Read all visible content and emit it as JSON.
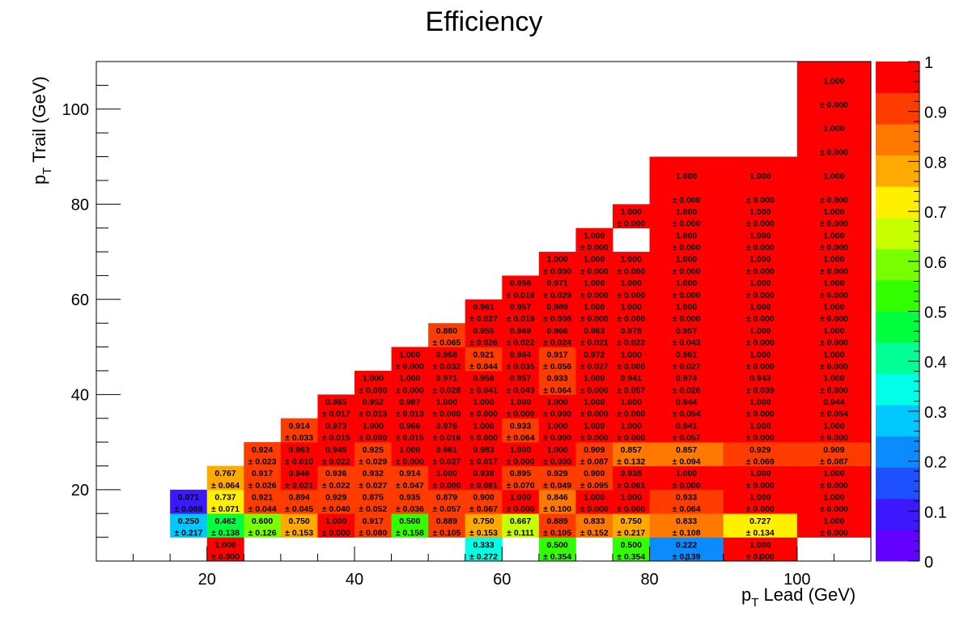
{
  "chart_data": {
    "type": "heatmap",
    "title": "Efficiency",
    "xlabel": {
      "base": "p",
      "sub": "T",
      "rest": " Lead (GeV)"
    },
    "ylabel": {
      "base": "p",
      "sub": "T",
      "rest": " Trail (GeV)"
    },
    "x_edges": [
      5,
      10,
      15,
      20,
      25,
      30,
      35,
      40,
      45,
      50,
      55,
      60,
      65,
      70,
      75,
      80,
      90,
      100,
      110
    ],
    "y_edges": [
      5,
      10,
      12.5,
      15,
      17.5,
      20,
      22.5,
      25,
      27.5,
      30,
      32.5,
      35,
      37.5,
      40,
      42.5,
      45,
      47.5,
      50,
      52.5,
      55,
      57.5,
      60,
      62.5,
      65,
      67.5,
      70,
      72.5,
      75,
      80,
      90,
      100,
      110
    ],
    "xlim": [
      5,
      110
    ],
    "ylim": [
      5,
      110
    ],
    "zlim": [
      0,
      1
    ],
    "x_ticks": [
      20,
      40,
      60,
      80,
      100
    ],
    "y_ticks": [
      20,
      40,
      60,
      80,
      100
    ],
    "z_ticks": [
      "0",
      "0.1",
      "0.2",
      "0.3",
      "0.4",
      "0.5",
      "0.6",
      "0.7",
      "0.8",
      "0.9",
      "1"
    ],
    "palette": [
      "#6400ff",
      "#3c18ff",
      "#1e50ff",
      "#0a8cff",
      "#00c8ff",
      "#00ffe6",
      "#00ff96",
      "#00ff3c",
      "#32ff00",
      "#78ff00",
      "#c8ff00",
      "#fff000",
      "#ffaa00",
      "#ff7800",
      "#ff3c00",
      "#ff0000"
    ],
    "rows": [
      [
        null,
        null,
        null,
        [
          "1.000",
          "0.000"
        ],
        null,
        null,
        null,
        null,
        null,
        null,
        [
          "0.333",
          "0.272"
        ],
        null,
        [
          "0.500",
          "0.354"
        ],
        null,
        [
          "0.500",
          "0.354"
        ],
        [
          "0.222",
          "0.139"
        ],
        [
          "1.000",
          "0.000"
        ],
        null
      ],
      [
        null,
        null,
        [
          "0.250",
          "0.217"
        ],
        [
          "0.462",
          "0.138"
        ],
        [
          "0.600",
          "0.126"
        ],
        [
          "0.750",
          "0.153"
        ],
        [
          "1.000",
          "0.000"
        ],
        [
          "0.917",
          "0.080"
        ],
        [
          "0.500",
          "0.158"
        ],
        [
          "0.889",
          "0.105"
        ],
        [
          "0.750",
          "0.153"
        ],
        [
          "0.667",
          "0.111"
        ],
        [
          "0.889",
          "0.105"
        ],
        [
          "0.833",
          "0.152"
        ],
        [
          "0.750",
          "0.217"
        ],
        [
          "0.833",
          "0.108"
        ],
        [
          "0.727",
          "0.134"
        ],
        [
          "1.000",
          "0.000"
        ]
      ],
      [
        null,
        null,
        [
          "0.071",
          "0.069"
        ],
        [
          "0.737",
          "0.071"
        ],
        [
          "0.921",
          "0.044"
        ],
        [
          "0.894",
          "0.045"
        ],
        [
          "0.929",
          "0.040"
        ],
        [
          "0.875",
          "0.052"
        ],
        [
          "0.935",
          "0.036"
        ],
        [
          "0.879",
          "0.057"
        ],
        [
          "0.900",
          "0.067"
        ],
        [
          "1.000",
          "0.000"
        ],
        [
          "0.846",
          "0.100"
        ],
        [
          "1.000",
          "0.000"
        ],
        [
          "1.000",
          "0.000"
        ],
        [
          "0.933",
          "0.064"
        ],
        [
          "1.000",
          "0.000"
        ],
        [
          "1.000",
          "0.000"
        ]
      ],
      [
        null,
        null,
        null,
        [
          "0.767",
          "0.064"
        ],
        [
          "0.917",
          "0.026"
        ],
        [
          "0.946",
          "0.021"
        ],
        [
          "0.936",
          "0.022"
        ],
        [
          "0.932",
          "0.027"
        ],
        [
          "0.914",
          "0.047"
        ],
        [
          "1.000",
          "0.000"
        ],
        [
          "0.938",
          "0.061"
        ],
        [
          "0.895",
          "0.070"
        ],
        [
          "0.929",
          "0.049"
        ],
        [
          "0.900",
          "0.095"
        ],
        [
          "0.938",
          "0.061"
        ],
        [
          "1.000",
          "0.000"
        ],
        [
          "1.000",
          "0.000"
        ],
        [
          "1.000",
          "0.000"
        ]
      ],
      [
        null,
        null,
        null,
        null,
        [
          "0.924",
          "0.023"
        ],
        [
          "0.963",
          "0.010"
        ],
        [
          "0.945",
          "0.022"
        ],
        [
          "0.925",
          "0.029"
        ],
        [
          "1.000",
          "0.000"
        ],
        [
          "0.961",
          "0.027"
        ],
        [
          "0.983",
          "0.017"
        ],
        [
          "1.000",
          "0.000"
        ],
        [
          "1.000",
          "0.000"
        ],
        [
          "0.909",
          "0.087"
        ],
        [
          "0.857",
          "0.132"
        ],
        [
          "0.857",
          "0.094"
        ],
        [
          "0.929",
          "0.069"
        ],
        [
          "0.909",
          "0.087"
        ]
      ],
      [
        null,
        null,
        null,
        null,
        null,
        [
          "0.914",
          "0.033"
        ],
        [
          "0.973",
          "0.015"
        ],
        [
          "1.000",
          "0.000"
        ],
        [
          "0.966",
          "0.015"
        ],
        [
          "0.976",
          "0.016"
        ],
        [
          "1.000",
          "0.000"
        ],
        [
          "0.933",
          "0.064"
        ],
        [
          "1.000",
          "0.000"
        ],
        [
          "1.000",
          "0.000"
        ],
        [
          "1.000",
          "0.000"
        ],
        [
          "0.941",
          "0.057"
        ],
        [
          "1.000",
          "0.000"
        ],
        [
          "1.000",
          "0.000"
        ]
      ],
      [
        null,
        null,
        null,
        null,
        null,
        null,
        [
          "0.965",
          "0.017"
        ],
        [
          "0.952",
          "0.013"
        ],
        [
          "0.987",
          "0.013"
        ],
        [
          "1.000",
          "0.000"
        ],
        [
          "1.000",
          "0.000"
        ],
        [
          "1.000",
          "0.000"
        ],
        [
          "1.000",
          "0.000"
        ],
        [
          "1.000",
          "0.000"
        ],
        [
          "1.000",
          "0.000"
        ],
        [
          "0.944",
          "0.054"
        ],
        [
          "1.000",
          "0.000"
        ],
        [
          "0.944",
          "0.054"
        ]
      ],
      [
        null,
        null,
        null,
        null,
        null,
        null,
        null,
        [
          "1.000",
          "0.000"
        ],
        [
          "1.000",
          "0.000"
        ],
        [
          "0.971",
          "0.028"
        ],
        [
          "0.958",
          "0.041"
        ],
        [
          "0.957",
          "0.043"
        ],
        [
          "0.933",
          "0.064"
        ],
        [
          "1.000",
          "0.000"
        ],
        [
          "0.941",
          "0.057"
        ],
        [
          "0.974",
          "0.026"
        ],
        [
          "0.943",
          "0.039"
        ],
        [
          "1.000",
          "0.000"
        ]
      ],
      [
        null,
        null,
        null,
        null,
        null,
        null,
        null,
        null,
        [
          "1.000",
          "0.000"
        ],
        [
          "0.968",
          "0.032"
        ],
        [
          "0.921",
          "0.044"
        ],
        [
          "0.964",
          "0.035"
        ],
        [
          "0.917",
          "0.056"
        ],
        [
          "0.972",
          "0.027"
        ],
        [
          "1.000",
          "0.000"
        ],
        [
          "0.961",
          "0.027"
        ],
        [
          "1.000",
          "0.000"
        ],
        [
          "1.000",
          "0.000"
        ]
      ],
      [
        null,
        null,
        null,
        null,
        null,
        null,
        null,
        null,
        null,
        [
          "0.880",
          "0.065"
        ],
        [
          "0.955",
          "0.026"
        ],
        [
          "0.969",
          "0.022"
        ],
        [
          "0.966",
          "0.024"
        ],
        [
          "0.963",
          "0.021"
        ],
        [
          "0.978",
          "0.022"
        ],
        [
          "0.957",
          "0.043"
        ],
        [
          "1.000",
          "0.000"
        ],
        [
          "1.000",
          "0.000"
        ]
      ],
      [
        null,
        null,
        null,
        null,
        null,
        null,
        null,
        null,
        null,
        null,
        [
          "0.961",
          "0.027"
        ],
        [
          "0.957",
          "0.019"
        ],
        [
          "0.989",
          "0.008"
        ],
        [
          "1.000",
          "0.000"
        ],
        [
          "1.000",
          "0.000"
        ],
        [
          "1.000",
          "0.000"
        ],
        [
          "1.000",
          "0.000"
        ],
        [
          "1.000",
          "0.000"
        ]
      ],
      [
        null,
        null,
        null,
        null,
        null,
        null,
        null,
        null,
        null,
        null,
        null,
        [
          "0.956",
          "0.019"
        ],
        [
          "0.971",
          "0.029"
        ],
        [
          "1.000",
          "0.000"
        ],
        [
          "1.000",
          "0.000"
        ],
        [
          "1.000",
          "0.000"
        ],
        [
          "1.000",
          "0.000"
        ],
        [
          "1.000",
          "0.000"
        ]
      ],
      [
        null,
        null,
        null,
        null,
        null,
        null,
        null,
        null,
        null,
        null,
        null,
        null,
        [
          "1.000",
          "0.000"
        ],
        [
          "1.000",
          "0.000"
        ],
        [
          "1.000",
          "0.000"
        ],
        [
          "1.000",
          "0.000"
        ],
        [
          "1.000",
          "0.000"
        ],
        [
          "1.000",
          "0.000"
        ]
      ],
      [
        null,
        null,
        null,
        null,
        null,
        null,
        null,
        null,
        null,
        null,
        null,
        null,
        null,
        [
          "1.000",
          "0.000"
        ],
        null,
        [
          "1.000",
          "0.000"
        ],
        [
          "1.000",
          "0.000"
        ],
        [
          "1.000",
          "0.000"
        ]
      ],
      [
        null,
        null,
        null,
        null,
        null,
        null,
        null,
        null,
        null,
        null,
        null,
        null,
        null,
        null,
        [
          "1.000",
          "0.000"
        ],
        [
          "1.000",
          "0.000"
        ],
        [
          "1.000",
          "0.000"
        ],
        [
          "1.000",
          "0.000"
        ]
      ],
      [
        null,
        null,
        null,
        null,
        null,
        null,
        null,
        null,
        null,
        null,
        null,
        null,
        null,
        null,
        null,
        [
          "1.000",
          "0.000"
        ],
        [
          "1.000",
          "0.000"
        ],
        [
          "1.000",
          "0.000"
        ]
      ],
      [
        null,
        null,
        null,
        null,
        null,
        null,
        null,
        null,
        null,
        null,
        null,
        null,
        null,
        null,
        null,
        null,
        null,
        [
          "1.000",
          "0.000"
        ]
      ],
      [
        null,
        null,
        null,
        null,
        null,
        null,
        null,
        null,
        null,
        null,
        null,
        null,
        null,
        null,
        null,
        null,
        null,
        [
          "1.000",
          "0.000"
        ]
      ]
    ],
    "row_y_index": [
      0,
      1,
      2,
      3,
      4,
      5,
      6,
      7,
      8,
      9,
      10,
      11,
      12,
      13,
      14,
      15,
      16,
      17
    ],
    "row_y_ranges": [
      [
        5,
        10
      ],
      [
        10,
        15
      ],
      [
        15,
        20
      ],
      [
        20,
        25
      ],
      [
        25,
        30
      ],
      [
        30,
        35
      ],
      [
        35,
        40
      ],
      [
        40,
        45
      ],
      [
        45,
        50
      ],
      [
        50,
        55
      ],
      [
        55,
        60
      ],
      [
        60,
        65
      ],
      [
        65,
        70
      ],
      [
        70,
        75
      ],
      [
        75,
        80
      ],
      [
        80,
        90
      ],
      [
        90,
        100
      ],
      [
        100,
        110
      ]
    ]
  }
}
